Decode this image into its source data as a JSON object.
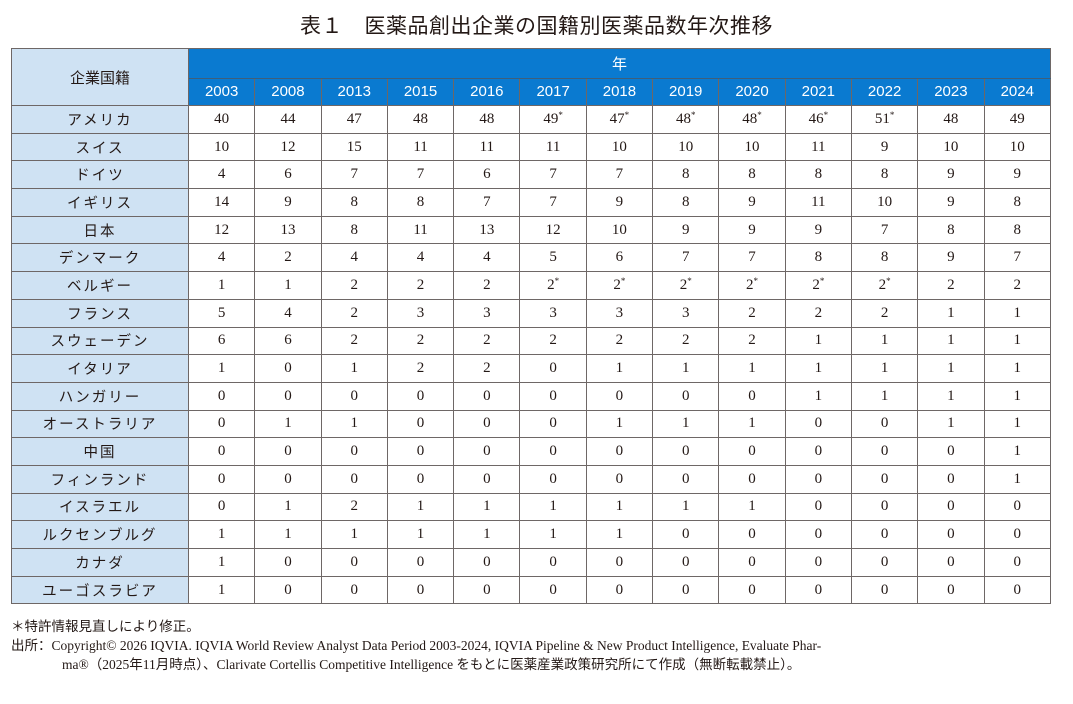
{
  "title": "表１　医薬品創出企業の国籍別医薬品数年次推移",
  "table": {
    "corner_header": "企業国籍",
    "year_group_header": "年",
    "years": [
      "2003",
      "2008",
      "2013",
      "2015",
      "2016",
      "2017",
      "2018",
      "2019",
      "2020",
      "2021",
      "2022",
      "2023",
      "2024"
    ],
    "rows": [
      {
        "country": "アメリカ",
        "values": [
          "40",
          "44",
          "47",
          "48",
          "48",
          "49*",
          "47*",
          "48*",
          "48*",
          "46*",
          "51*",
          "48",
          "49"
        ]
      },
      {
        "country": "スイス",
        "values": [
          "10",
          "12",
          "15",
          "11",
          "11",
          "11",
          "10",
          "10",
          "10",
          "11",
          "9",
          "10",
          "10"
        ]
      },
      {
        "country": "ドイツ",
        "values": [
          "4",
          "6",
          "7",
          "7",
          "6",
          "7",
          "7",
          "8",
          "8",
          "8",
          "8",
          "9",
          "9"
        ]
      },
      {
        "country": "イギリス",
        "values": [
          "14",
          "9",
          "8",
          "8",
          "7",
          "7",
          "9",
          "8",
          "9",
          "11",
          "10",
          "9",
          "8"
        ]
      },
      {
        "country": "日本",
        "values": [
          "12",
          "13",
          "8",
          "11",
          "13",
          "12",
          "10",
          "9",
          "9",
          "9",
          "7",
          "8",
          "8"
        ]
      },
      {
        "country": "デンマーク",
        "values": [
          "4",
          "2",
          "4",
          "4",
          "4",
          "5",
          "6",
          "7",
          "7",
          "8",
          "8",
          "9",
          "7"
        ]
      },
      {
        "country": "ベルギー",
        "values": [
          "1",
          "1",
          "2",
          "2",
          "2",
          "2*",
          "2*",
          "2*",
          "2*",
          "2*",
          "2*",
          "2",
          "2"
        ]
      },
      {
        "country": "フランス",
        "values": [
          "5",
          "4",
          "2",
          "3",
          "3",
          "3",
          "3",
          "3",
          "2",
          "2",
          "2",
          "1",
          "1"
        ]
      },
      {
        "country": "スウェーデン",
        "values": [
          "6",
          "6",
          "2",
          "2",
          "2",
          "2",
          "2",
          "2",
          "2",
          "1",
          "1",
          "1",
          "1"
        ]
      },
      {
        "country": "イタリア",
        "values": [
          "1",
          "0",
          "1",
          "2",
          "2",
          "0",
          "1",
          "1",
          "1",
          "1",
          "1",
          "1",
          "1"
        ]
      },
      {
        "country": "ハンガリー",
        "values": [
          "0",
          "0",
          "0",
          "0",
          "0",
          "0",
          "0",
          "0",
          "0",
          "1",
          "1",
          "1",
          "1"
        ]
      },
      {
        "country": "オーストラリア",
        "values": [
          "0",
          "1",
          "1",
          "0",
          "0",
          "0",
          "1",
          "1",
          "1",
          "0",
          "0",
          "1",
          "1"
        ]
      },
      {
        "country": "中国",
        "values": [
          "0",
          "0",
          "0",
          "0",
          "0",
          "0",
          "0",
          "0",
          "0",
          "0",
          "0",
          "0",
          "1"
        ]
      },
      {
        "country": "フィンランド",
        "values": [
          "0",
          "0",
          "0",
          "0",
          "0",
          "0",
          "0",
          "0",
          "0",
          "0",
          "0",
          "0",
          "1"
        ]
      },
      {
        "country": "イスラエル",
        "values": [
          "0",
          "1",
          "2",
          "1",
          "1",
          "1",
          "1",
          "1",
          "1",
          "0",
          "0",
          "0",
          "0"
        ]
      },
      {
        "country": "ルクセンブルグ",
        "values": [
          "1",
          "1",
          "1",
          "1",
          "1",
          "1",
          "1",
          "0",
          "0",
          "0",
          "0",
          "0",
          "0"
        ]
      },
      {
        "country": "カナダ",
        "values": [
          "1",
          "0",
          "0",
          "0",
          "0",
          "0",
          "0",
          "0",
          "0",
          "0",
          "0",
          "0",
          "0"
        ]
      },
      {
        "country": "ユーゴスラビア",
        "values": [
          "1",
          "0",
          "0",
          "0",
          "0",
          "0",
          "0",
          "0",
          "0",
          "0",
          "0",
          "0",
          "0"
        ]
      }
    ]
  },
  "notes": {
    "asterisk_note": "＊特許情報見直しにより修正。",
    "source_label": "出所：",
    "source_line1": "Copyright© 2026 IQVIA. IQVIA World Review Analyst Data Period 2003-2024, IQVIA Pipeline & New Product Intelligence, Evaluate Phar-",
    "source_line2": "ma®（2025年11月時点）、Clarivate Cortellis Competitive Intelligence をもとに医薬産業政策研究所にて作成（無断転載禁止）。"
  },
  "colors": {
    "header_blue": "#0a7ad0",
    "country_column_bg": "#cfe2f3",
    "border": "#6e6766"
  }
}
